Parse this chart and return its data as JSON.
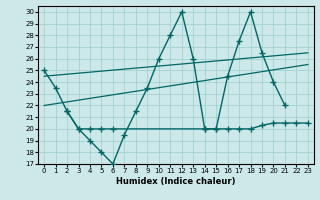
{
  "bg_color": "#cce8e8",
  "line_color": "#006666",
  "xlabel": "Humidex (Indice chaleur)",
  "yticks": [
    17,
    18,
    19,
    20,
    21,
    22,
    23,
    24,
    25,
    26,
    27,
    28,
    29,
    30
  ],
  "xticks": [
    0,
    1,
    2,
    3,
    4,
    5,
    6,
    7,
    8,
    9,
    10,
    11,
    12,
    13,
    14,
    15,
    16,
    17,
    18,
    19,
    20,
    21,
    22,
    23
  ],
  "s1_x": [
    0,
    1,
    2,
    3,
    4,
    5,
    6,
    7,
    8,
    9,
    10,
    11,
    12,
    13,
    14,
    15,
    16,
    17,
    18,
    19,
    20,
    21
  ],
  "s1_y": [
    25.0,
    23.5,
    21.5,
    20.0,
    19.0,
    18.0,
    17.0,
    19.5,
    21.5,
    23.5,
    26.0,
    28.0,
    30.0,
    26.0,
    20.0,
    20.0,
    24.5,
    27.5,
    30.0,
    26.5,
    24.0,
    22.0
  ],
  "s2_x": [
    2,
    3,
    4,
    5,
    6,
    14,
    15,
    16,
    17,
    18,
    19,
    20,
    21,
    22,
    23
  ],
  "s2_y": [
    21.5,
    20.0,
    20.0,
    20.0,
    20.0,
    20.0,
    20.0,
    20.0,
    20.0,
    20.0,
    20.3,
    20.5,
    20.5,
    20.5,
    20.5
  ],
  "trend1_x": [
    0,
    23
  ],
  "trend1_y": [
    24.5,
    26.5
  ],
  "trend2_x": [
    0,
    23
  ],
  "trend2_y": [
    22.0,
    25.5
  ]
}
